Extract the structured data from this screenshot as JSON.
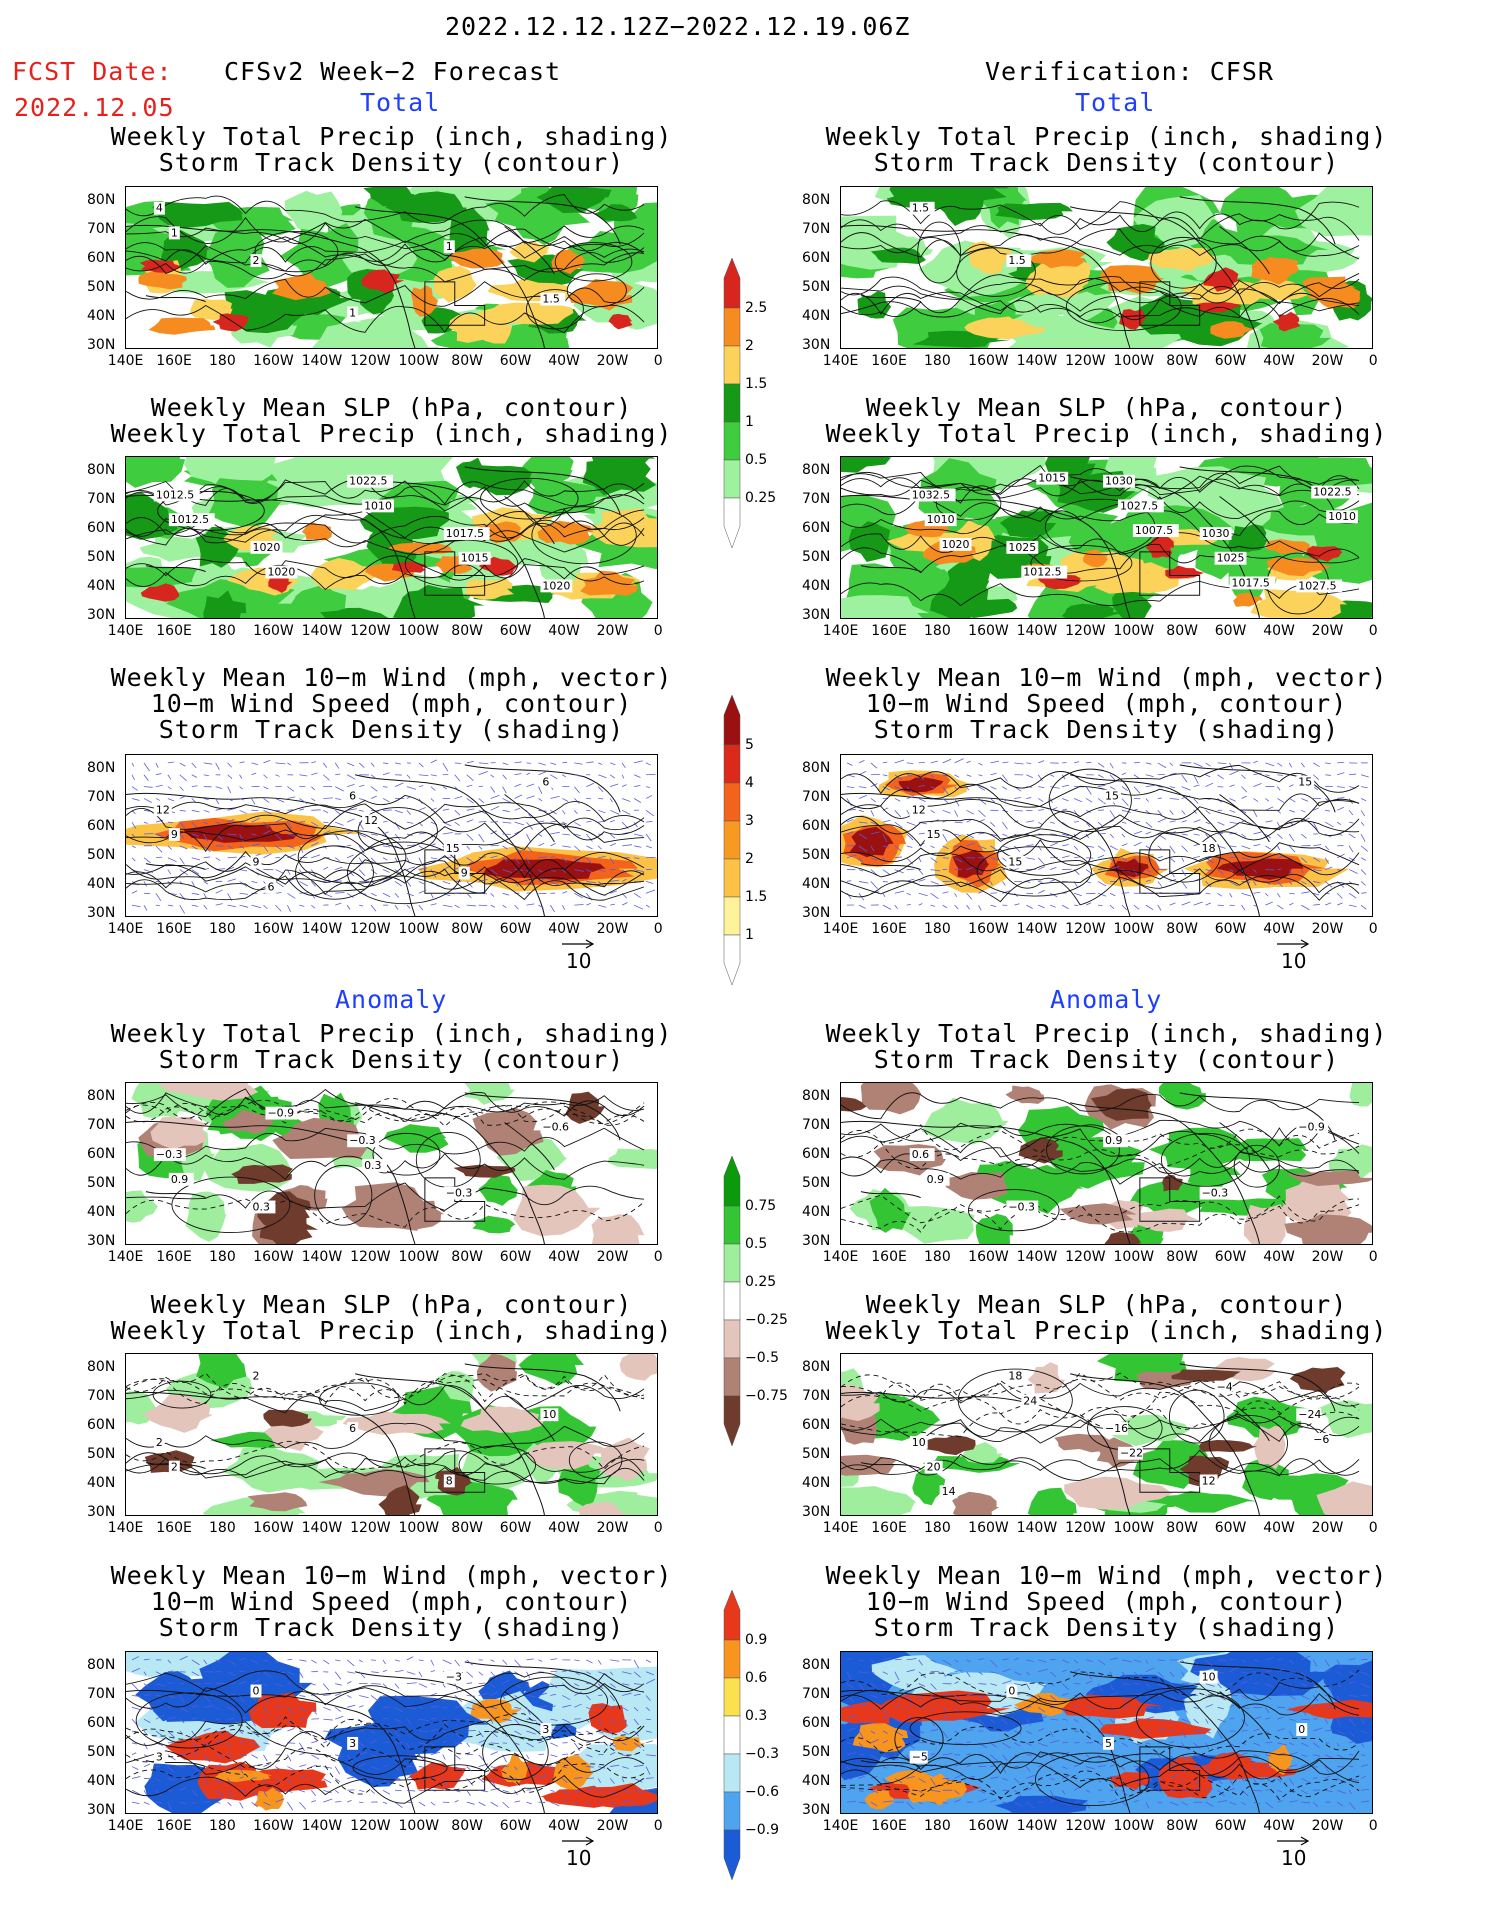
{
  "header": {
    "date_range": "2022.12.12.12Z−2022.12.19.06Z",
    "fcst_label": "FCST Date:",
    "fcst_date": "2022.12.05",
    "left_title": "CFSv2 Week−2 Forecast",
    "right_title": "Verification: CFSR",
    "section_total": "Total",
    "section_anomaly": "Anomaly"
  },
  "panel_titles": {
    "precip": [
      "Weekly Total Precip (inch, shading)",
      "Storm Track Density (contour)"
    ],
    "slp": [
      "Weekly Mean SLP (hPa, contour)",
      "Weekly Total Precip (inch, shading)"
    ],
    "wind": [
      "Weekly Mean 10−m Wind (mph, vector)",
      "10−m Wind Speed (mph, contour)",
      "Storm Track Density (shading)"
    ]
  },
  "axes": {
    "lat_ticks": [
      "80N",
      "70N",
      "60N",
      "50N",
      "40N",
      "30N"
    ],
    "lon_ticks": [
      "140E",
      "160E",
      "180",
      "160W",
      "140W",
      "120W",
      "100W",
      "80W",
      "60W",
      "40W",
      "20W",
      "0"
    ]
  },
  "vector_ref": "10",
  "colorbars": {
    "total_precip": {
      "labels": [
        "2.5",
        "2",
        "1.5",
        "1",
        "0.5",
        "0.25"
      ],
      "colors": [
        "#d7261e",
        "#f68c1f",
        "#fbd35b",
        "#159917",
        "#3fcc3f",
        "#9ef19e",
        "#ffffff"
      ]
    },
    "total_std": {
      "labels": [
        "5",
        "4",
        "3",
        "2",
        "1.5",
        "1"
      ],
      "colors": [
        "#9b1010",
        "#dc2a1a",
        "#f4631c",
        "#f89a22",
        "#fbc245",
        "#fef29a",
        "#ffffff"
      ]
    },
    "anom_precip": {
      "labels": [
        "0.75",
        "0.5",
        "0.25",
        "−0.25",
        "−0.5",
        "−0.75"
      ],
      "colors": [
        "#0b9a0b",
        "#33c533",
        "#9eee9e",
        "#ffffff",
        "#e4c5bc",
        "#b08276",
        "#6e3b2c"
      ]
    },
    "anom_std": {
      "labels": [
        "0.9",
        "0.6",
        "0.3",
        "−0.3",
        "−0.6",
        "−0.9"
      ],
      "colors": [
        "#e8381b",
        "#f8951f",
        "#fbe04f",
        "#ffffff",
        "#b9e8f5",
        "#4ea4ef",
        "#1c5bd6"
      ]
    }
  },
  "map_labels": {
    "fp1": [
      "4",
      "2",
      "1",
      "1",
      "1.5",
      "1"
    ],
    "fs1": [
      "1012.5",
      "1020",
      "1022.5",
      "1017.5",
      "1020",
      "1012.5",
      "1020",
      "1010",
      "1015"
    ],
    "fw1": [
      "12",
      "9",
      "6",
      "15",
      "6",
      "9",
      "6",
      "12",
      "9"
    ],
    "fp2": [
      "−0.3",
      "0.3",
      "−0.3",
      "−0.3",
      "−0.6",
      "0.9",
      "−0.9",
      "0.3"
    ],
    "fs2": [
      "2",
      "2",
      "6",
      "8",
      "10",
      "2"
    ],
    "fw2": [
      "3",
      "0",
      "3",
      "−3",
      "3"
    ],
    "vp1": [
      "1.5",
      "1.5"
    ],
    "vs1": [
      "1032.5",
      "1025",
      "1030",
      "1030",
      "1027.5",
      "1010",
      "1012.5",
      "1027.5",
      "1025",
      "1022.5",
      "1020",
      "1015",
      "1007.5",
      "1017.5",
      "1010"
    ],
    "vw1": [
      "12",
      "15",
      "15",
      "18",
      "15",
      "15"
    ],
    "vp2": [
      "0.6",
      "−0.3",
      "0.9",
      "−0.3",
      "−0.9",
      "0.9"
    ],
    "vs2": [
      "10",
      "18",
      "−16",
      "12",
      "−24",
      "20",
      "24",
      "−22",
      "−4",
      "−6",
      "14"
    ],
    "vw2": [
      "−5",
      "0",
      "5",
      "10",
      "0"
    ]
  }
}
